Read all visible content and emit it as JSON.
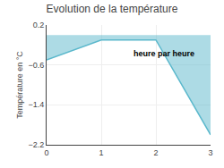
{
  "chart_data": {
    "type": "area",
    "title": "Evolution de la température",
    "ylabel": "Température en °C",
    "x": [
      0,
      1,
      2,
      3
    ],
    "values": [
      -0.5,
      -0.1,
      -0.1,
      -2.0
    ],
    "color": "#5bb8cc",
    "xlim": [
      0,
      3
    ],
    "xticks": [
      0,
      1,
      2,
      3
    ],
    "ylim": [
      -2.2,
      0.2
    ],
    "yticks": [
      0.2,
      -0.6,
      -1.4,
      -2.2
    ],
    "grid": true,
    "annotations": [
      {
        "text": "heure par heure",
        "x": 1.55,
        "y": -0.5
      }
    ]
  }
}
